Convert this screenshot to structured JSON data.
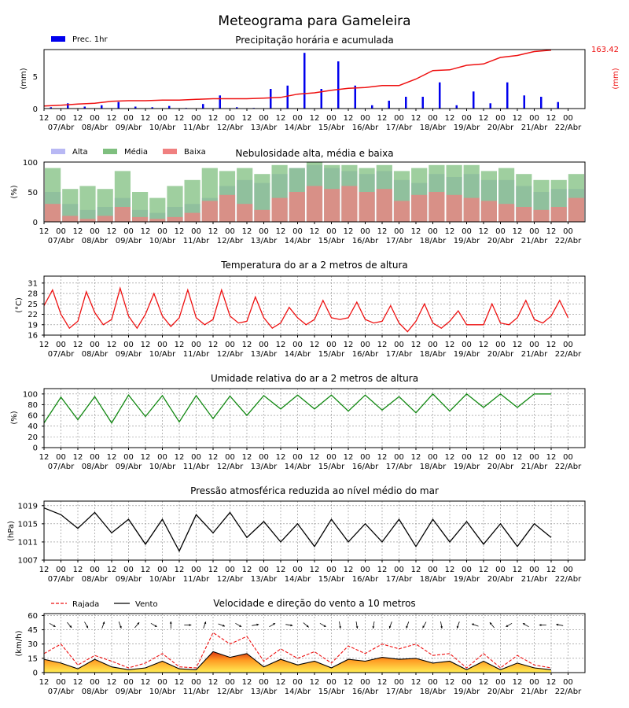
{
  "title": "Meteograma para Gameleira",
  "x_axis": {
    "hour_labels": [
      "12",
      "00",
      "12",
      "00",
      "12",
      "00",
      "12",
      "00",
      "12",
      "00",
      "12",
      "00",
      "12",
      "00",
      "12",
      "00",
      "12",
      "00",
      "12",
      "00",
      "12",
      "00",
      "12",
      "00",
      "12",
      "00",
      "12",
      "00",
      "12",
      "00",
      "12",
      "00"
    ],
    "date_labels": [
      "07/Abr",
      "08/Abr",
      "09/Abr",
      "10/Abr",
      "11/Abr",
      "12/Abr",
      "13/Abr",
      "14/Abr",
      "15/Abr",
      "16/Abr",
      "17/Abr",
      "18/Abr",
      "19/Abr",
      "20/Abr",
      "21/Abr",
      "22/Abr"
    ]
  },
  "panels": {
    "precip": {
      "title": "Precipitação horária e acumulada",
      "ylabel_left": "(mm)",
      "ylabel_right": "(mm)",
      "legend": "Prec. 1hr",
      "right_max_label": "163.42",
      "yticks": [
        "0",
        "5"
      ],
      "bar_color": "#0000ee",
      "line_color": "#ee1111"
    },
    "clouds": {
      "title": "Nebulosidade alta, média e baixa",
      "ylabel": "(%)",
      "yticks": [
        "0",
        "50",
        "100"
      ],
      "legend": [
        "Alta",
        "Média",
        "Baixa"
      ],
      "colors": [
        "#b8b8f4",
        "#7fbf7f",
        "#f08080"
      ]
    },
    "temp": {
      "title": "Temperatura do ar a 2 metros de altura",
      "ylabel": "(°C)",
      "yticks": [
        "16",
        "19",
        "22",
        "25",
        "28",
        "31"
      ],
      "line_color": "#ee1111"
    },
    "humidity": {
      "title": "Umidade relativa do ar a 2 metros de altura",
      "ylabel": "(%)",
      "yticks": [
        "0",
        "20",
        "40",
        "60",
        "80",
        "100"
      ],
      "line_color": "#118811"
    },
    "pressure": {
      "title": "Pressão atmosférica reduzida ao nível médio do mar",
      "ylabel": "(hPa)",
      "yticks": [
        "1007",
        "1011",
        "1015",
        "1019"
      ],
      "line_color": "#000000"
    },
    "wind": {
      "title": "Velocidade e direção do vento a 10 metros",
      "ylabel": "(km/h)",
      "yticks": [
        "0",
        "15",
        "30",
        "45",
        "60"
      ],
      "legend": [
        "Rajada",
        "Vento"
      ],
      "gust_color": "#ee1111",
      "wind_color": "#000000"
    }
  },
  "chart_data": [
    {
      "type": "bar",
      "title": "Precipitação horária e acumulada",
      "ylabel": "(mm)",
      "ylim": [
        0,
        9
      ],
      "x": [
        "07/Abr 12h",
        "08/Abr 00h",
        "08/Abr 12h",
        "09/Abr 00h",
        "09/Abr 12h",
        "10/Abr 00h",
        "10/Abr 12h",
        "11/Abr 00h",
        "11/Abr 12h",
        "12/Abr 00h",
        "12/Abr 12h",
        "13/Abr 00h",
        "13/Abr 12h",
        "14/Abr 00h",
        "14/Abr 12h",
        "15/Abr 00h",
        "15/Abr 12h",
        "16/Abr 00h",
        "16/Abr 12h",
        "17/Abr 00h",
        "17/Abr 12h",
        "18/Abr 00h",
        "18/Abr 12h",
        "19/Abr 00h",
        "19/Abr 12h",
        "20/Abr 00h",
        "20/Abr 12h",
        "21/Abr 00h",
        "21/Abr 12h",
        "22/Abr 00h",
        "22/Abr 12h"
      ],
      "series": [
        {
          "name": "Prec. 1hr",
          "values": [
            0.2,
            0.8,
            0.3,
            0.5,
            1.0,
            0.3,
            0.2,
            0.4,
            0.1,
            0.7,
            2.0,
            0.2,
            0.1,
            3.0,
            3.5,
            8.5,
            3.0,
            7.2,
            3.5,
            0.5,
            1.2,
            1.8,
            1.8,
            4.0,
            0.5,
            2.6,
            0.8,
            4.0,
            2.0,
            1.8,
            1.0
          ]
        }
      ],
      "accumulated": [
        0.4,
        0.5,
        0.7,
        0.8,
        1.1,
        1.2,
        1.2,
        1.3,
        1.3,
        1.4,
        1.5,
        1.5,
        1.5,
        1.6,
        1.7,
        2.2,
        2.4,
        2.8,
        3.1,
        3.2,
        3.5,
        3.5,
        4.5,
        5.8,
        5.9,
        6.6,
        6.8,
        7.8,
        8.1,
        8.7,
        8.9
      ]
    },
    {
      "type": "bar",
      "title": "Nebulosidade alta, média e baixa",
      "ylabel": "(%)",
      "ylim": [
        0,
        100
      ],
      "series": [
        {
          "name": "Alta",
          "values": [
            50,
            30,
            20,
            25,
            40,
            20,
            15,
            25,
            30,
            40,
            60,
            70,
            65,
            80,
            90,
            95,
            90,
            85,
            80,
            85,
            70,
            65,
            80,
            75,
            80,
            70,
            70,
            60,
            50,
            55,
            55
          ]
        },
        {
          "name": "Média",
          "values": [
            90,
            55,
            60,
            55,
            85,
            50,
            40,
            60,
            70,
            90,
            85,
            90,
            80,
            95,
            90,
            100,
            95,
            95,
            90,
            95,
            85,
            90,
            95,
            95,
            95,
            85,
            90,
            80,
            70,
            70,
            80
          ]
        },
        {
          "name": "Baixa",
          "values": [
            30,
            10,
            5,
            10,
            25,
            8,
            5,
            8,
            15,
            35,
            45,
            30,
            20,
            40,
            50,
            60,
            55,
            60,
            50,
            55,
            35,
            45,
            50,
            45,
            40,
            35,
            30,
            25,
            20,
            25,
            40
          ]
        }
      ]
    },
    {
      "type": "line",
      "title": "Temperatura do ar a 2 metros de altura",
      "ylabel": "(°C)",
      "ylim": [
        16,
        33
      ],
      "x": [
        "07/Abr 06h",
        "07/Abr 12h",
        "07/Abr 18h",
        "08/Abr 00h",
        "08/Abr 06h",
        "08/Abr 12h",
        "08/Abr 18h",
        "09/Abr 00h",
        "09/Abr 06h",
        "09/Abr 12h",
        "09/Abr 18h",
        "10/Abr 00h",
        "10/Abr 06h",
        "10/Abr 12h",
        "10/Abr 18h",
        "11/Abr 00h",
        "11/Abr 06h",
        "11/Abr 12h",
        "11/Abr 18h",
        "12/Abr 00h",
        "12/Abr 06h",
        "12/Abr 12h",
        "12/Abr 18h",
        "13/Abr 00h",
        "13/Abr 06h",
        "13/Abr 12h",
        "13/Abr 18h",
        "14/Abr 00h",
        "14/Abr 06h",
        "14/Abr 12h",
        "14/Abr 18h",
        "15/Abr 00h",
        "15/Abr 06h",
        "15/Abr 12h",
        "15/Abr 18h",
        "16/Abr 00h",
        "16/Abr 06h",
        "16/Abr 12h",
        "16/Abr 18h",
        "17/Abr 00h",
        "17/Abr 06h",
        "17/Abr 12h",
        "17/Abr 18h",
        "18/Abr 00h",
        "18/Abr 06h",
        "18/Abr 12h",
        "18/Abr 18h",
        "19/Abr 00h",
        "19/Abr 06h",
        "19/Abr 12h",
        "19/Abr 18h",
        "20/Abr 00h",
        "20/Abr 06h",
        "20/Abr 12h",
        "20/Abr 18h",
        "21/Abr 00h",
        "21/Abr 06h",
        "21/Abr 12h",
        "21/Abr 18h",
        "22/Abr 00h",
        "22/Abr 06h",
        "22/Abr 12h",
        "22/Abr 18h"
      ],
      "series": [
        {
          "name": "Temperatura",
          "values": [
            24.5,
            29,
            22,
            18,
            20,
            28.5,
            22.5,
            19,
            20.5,
            29.5,
            21.5,
            18,
            22,
            28,
            21.5,
            18.5,
            21,
            29,
            21,
            19,
            20.5,
            29,
            21.5,
            19.5,
            20,
            27,
            21,
            18,
            19.5,
            24,
            21,
            19,
            20.5,
            26,
            21,
            20.5,
            21,
            25.5,
            20.5,
            19.5,
            20,
            24.5,
            19.5,
            17,
            20,
            25,
            19.5,
            18,
            20,
            23,
            19,
            19,
            19,
            25,
            19.5,
            19,
            21,
            26,
            20.5,
            19.5,
            21.5,
            26,
            21
          ]
        }
      ]
    },
    {
      "type": "line",
      "title": "Umidade relativa do ar a 2 metros de altura",
      "ylabel": "(%)",
      "ylim": [
        0,
        110
      ],
      "x": [
        "07/Abr 12h",
        "08/Abr 00h",
        "08/Abr 12h",
        "09/Abr 00h",
        "09/Abr 12h",
        "10/Abr 00h",
        "10/Abr 12h",
        "11/Abr 00h",
        "11/Abr 12h",
        "12/Abr 00h",
        "12/Abr 12h",
        "13/Abr 00h",
        "13/Abr 12h",
        "14/Abr 00h",
        "14/Abr 12h",
        "15/Abr 00h",
        "15/Abr 12h",
        "16/Abr 00h",
        "16/Abr 12h",
        "17/Abr 00h",
        "17/Abr 12h",
        "18/Abr 00h",
        "18/Abr 12h",
        "19/Abr 00h",
        "19/Abr 12h",
        "20/Abr 00h",
        "20/Abr 12h",
        "21/Abr 00h",
        "21/Abr 12h",
        "22/Abr 00h",
        "22/Abr 12h"
      ],
      "series": [
        {
          "name": "Umidade",
          "values": [
            46,
            94,
            52,
            95,
            46,
            98,
            58,
            97,
            48,
            97,
            54,
            96,
            60,
            97,
            72,
            98,
            72,
            98,
            68,
            98,
            70,
            95,
            65,
            100,
            68,
            100,
            75,
            100,
            75,
            100,
            100
          ]
        }
      ]
    },
    {
      "type": "line",
      "title": "Pressão atmosférica reduzida ao nível médio do mar",
      "ylabel": "(hPa)",
      "ylim": [
        1007,
        1020
      ],
      "x": [
        "07/Abr 12h",
        "08/Abr 00h",
        "08/Abr 12h",
        "09/Abr 00h",
        "09/Abr 12h",
        "10/Abr 00h",
        "10/Abr 12h",
        "11/Abr 00h",
        "11/Abr 12h",
        "12/Abr 00h",
        "12/Abr 12h",
        "13/Abr 00h",
        "13/Abr 12h",
        "14/Abr 00h",
        "14/Abr 12h",
        "15/Abr 00h",
        "15/Abr 12h",
        "16/Abr 00h",
        "16/Abr 12h",
        "17/Abr 00h",
        "17/Abr 12h",
        "18/Abr 00h",
        "18/Abr 12h",
        "19/Abr 00h",
        "19/Abr 12h",
        "20/Abr 00h",
        "20/Abr 12h",
        "21/Abr 00h",
        "21/Abr 12h",
        "22/Abr 00h",
        "22/Abr 12h"
      ],
      "series": [
        {
          "name": "Pressão",
          "values": [
            1018.5,
            1017,
            1014,
            1017.5,
            1013,
            1016,
            1010.5,
            1016,
            1009,
            1017,
            1013,
            1017.5,
            1012,
            1015.5,
            1011,
            1015,
            1010,
            1016,
            1011,
            1015,
            1011,
            1016,
            1010,
            1016,
            1011,
            1015.5,
            1010.5,
            1015,
            1010,
            1015,
            1012
          ]
        }
      ]
    },
    {
      "type": "area",
      "title": "Velocidade e direção do vento a 10 metros",
      "ylabel": "(km/h)",
      "ylim": [
        0,
        62
      ],
      "x": [
        "07/Abr 12h",
        "08/Abr 00h",
        "08/Abr 12h",
        "09/Abr 00h",
        "09/Abr 12h",
        "10/Abr 00h",
        "10/Abr 12h",
        "11/Abr 00h",
        "11/Abr 12h",
        "12/Abr 00h",
        "12/Abr 12h",
        "13/Abr 00h",
        "13/Abr 12h",
        "14/Abr 00h",
        "14/Abr 12h",
        "15/Abr 00h",
        "15/Abr 12h",
        "16/Abr 00h",
        "16/Abr 12h",
        "17/Abr 00h",
        "17/Abr 12h",
        "18/Abr 00h",
        "18/Abr 12h",
        "19/Abr 00h",
        "19/Abr 12h",
        "20/Abr 00h",
        "20/Abr 12h",
        "21/Abr 00h",
        "21/Abr 12h",
        "22/Abr 00h",
        "22/Abr 12h"
      ],
      "series": [
        {
          "name": "Rajada",
          "values": [
            20,
            30,
            8,
            18,
            12,
            5,
            10,
            20,
            6,
            5,
            42,
            30,
            38,
            12,
            25,
            15,
            22,
            10,
            28,
            20,
            30,
            25,
            30,
            18,
            20,
            5,
            20,
            5,
            18,
            8,
            5
          ]
        },
        {
          "name": "Vento",
          "values": [
            14,
            10,
            4,
            14,
            6,
            3,
            5,
            12,
            4,
            3,
            22,
            16,
            20,
            6,
            14,
            8,
            12,
            5,
            14,
            12,
            16,
            14,
            15,
            10,
            12,
            3,
            12,
            3,
            10,
            5,
            3
          ]
        }
      ],
      "direction_deg": [
        300,
        320,
        330,
        200,
        340,
        220,
        300,
        180,
        270,
        200,
        290,
        300,
        260,
        240,
        280,
        310,
        300,
        350,
        350,
        10,
        20,
        20,
        30,
        350,
        20,
        110,
        140,
        60,
        120,
        90,
        100
      ]
    }
  ]
}
